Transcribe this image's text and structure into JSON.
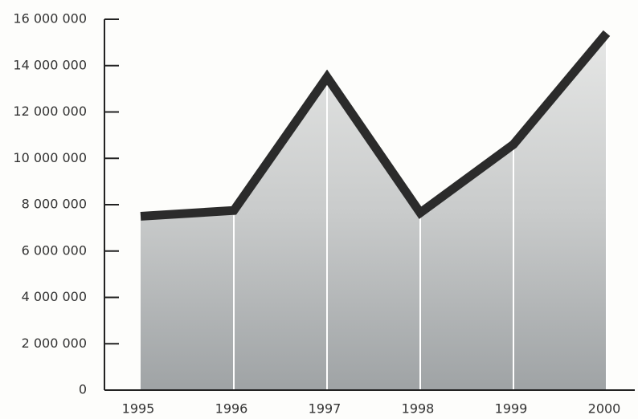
{
  "chart_data": {
    "type": "area",
    "categories": [
      "1995",
      "1996",
      "1997",
      "1998",
      "1999",
      "2000"
    ],
    "values": [
      7500000,
      7750000,
      13500000,
      7650000,
      10600000,
      15400000
    ],
    "color": "#2b2b2b",
    "fill": "#b9bcbd",
    "ylim": [
      0,
      16000000
    ],
    "yticks": [
      0,
      {
        "value": 2000000,
        "label": "2 000 000"
      },
      {
        "value": 4000000,
        "label": "4 000 000"
      },
      {
        "value": 6000000,
        "label": "6 000 000"
      },
      {
        "value": 8000000,
        "label": "8 000 000"
      },
      {
        "value": 10000000,
        "label": "10 000 000"
      },
      {
        "value": 12000000,
        "label": "12 000 000"
      },
      {
        "value": 14000000,
        "label": "14 000 000"
      },
      {
        "value": 16000000,
        "label": "16 000 000"
      }
    ],
    "grid": false
  }
}
